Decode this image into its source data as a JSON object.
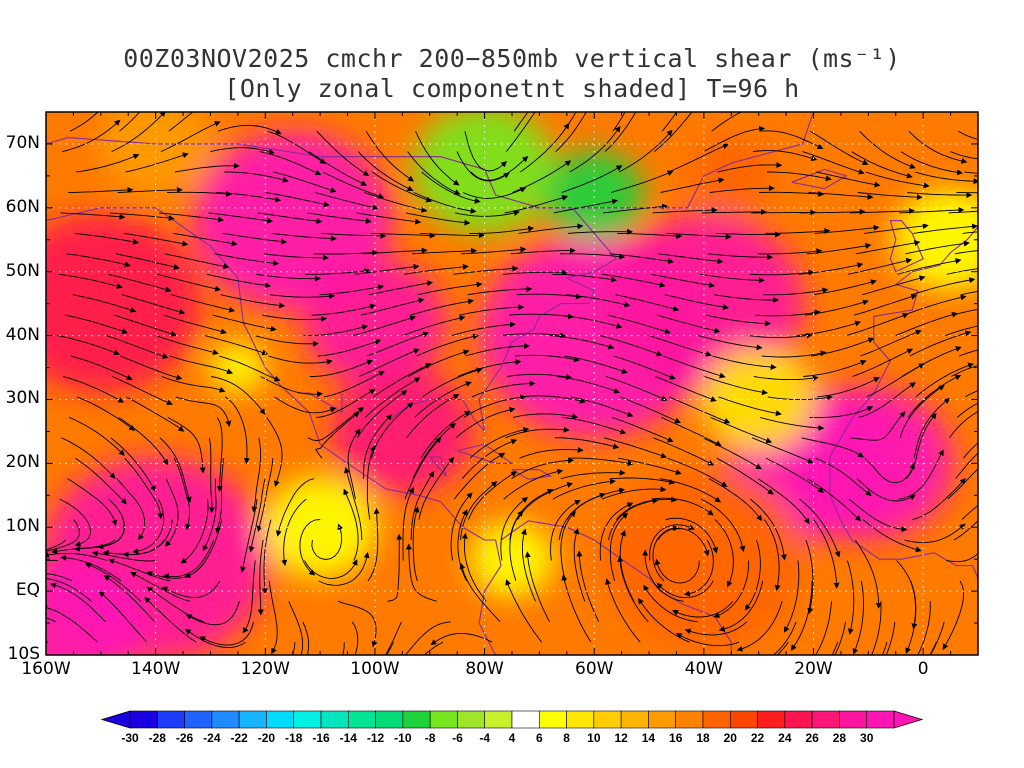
{
  "title_line1": "00Z03NOV2025 cmchr 200−850mb vertical shear (ms⁻¹)",
  "title_line2": "[Only zonal componetnt shaded] T=96 h",
  "map": {
    "lon_range": [
      -160,
      10
    ],
    "lat_range": [
      -10,
      75
    ],
    "lat_labels": [
      "70N",
      "60N",
      "50N",
      "40N",
      "30N",
      "20N",
      "10N",
      "EQ",
      "10S"
    ],
    "lat_values": [
      70,
      60,
      50,
      40,
      30,
      20,
      10,
      0,
      -10
    ],
    "lon_labels": [
      "160W",
      "140W",
      "120W",
      "100W",
      "80W",
      "60W",
      "40W",
      "20W",
      "0"
    ],
    "lon_values": [
      -160,
      -140,
      -120,
      -100,
      -80,
      -60,
      -40,
      -20,
      0
    ],
    "streamline_color": "#000000",
    "coastline_color": "#8a2a9a",
    "grid": "dotted"
  },
  "colorbar": {
    "labels": [
      "-30",
      "-28",
      "-26",
      "-24",
      "-22",
      "-20",
      "-18",
      "-16",
      "-14",
      "-12",
      "-10",
      "-8",
      "-6",
      "-4",
      "4",
      "6",
      "8",
      "10",
      "12",
      "14",
      "16",
      "18",
      "20",
      "22",
      "24",
      "26",
      "28",
      "30"
    ],
    "colors": [
      "#1a00e0",
      "#1e3cff",
      "#1e64ff",
      "#1e8cff",
      "#19b4ff",
      "#00dcff",
      "#00f0e6",
      "#00e6be",
      "#00e696",
      "#00dc78",
      "#1ed23c",
      "#78e61e",
      "#a0e628",
      "#c8f02d",
      "#ffffff",
      "#ffff00",
      "#ffe600",
      "#ffcd00",
      "#ffb400",
      "#ff9b00",
      "#ff8200",
      "#ff6400",
      "#ff4600",
      "#ff1e1e",
      "#ff1450",
      "#ff1478",
      "#ff14a0",
      "#ff14b4"
    ]
  },
  "shading_blobs": [
    {
      "lon": -150,
      "lat": 45,
      "r": 14,
      "v": 24
    },
    {
      "lon": -115,
      "lat": 58,
      "r": 14,
      "v": 30
    },
    {
      "lon": -100,
      "lat": 42,
      "r": 10,
      "v": 28
    },
    {
      "lon": -95,
      "lat": 25,
      "r": 10,
      "v": 26
    },
    {
      "lon": -60,
      "lat": 40,
      "r": 16,
      "v": 30
    },
    {
      "lon": -40,
      "lat": 45,
      "r": 14,
      "v": 28
    },
    {
      "lon": -20,
      "lat": 20,
      "r": 12,
      "v": 30
    },
    {
      "lon": -10,
      "lat": 20,
      "r": 12,
      "v": 30
    },
    {
      "lon": -140,
      "lat": 5,
      "r": 16,
      "v": 28
    },
    {
      "lon": -155,
      "lat": -5,
      "r": 10,
      "v": 30
    },
    {
      "lon": -110,
      "lat": 10,
      "r": 8,
      "v": 6
    },
    {
      "lon": -40,
      "lat": 5,
      "r": 14,
      "v": 18
    },
    {
      "lon": -80,
      "lat": 66,
      "r": 10,
      "v": -8
    },
    {
      "lon": -60,
      "lat": 62,
      "r": 7,
      "v": -10
    },
    {
      "lon": -75,
      "lat": 5,
      "r": 6,
      "v": 5
    },
    {
      "lon": -30,
      "lat": 30,
      "r": 8,
      "v": 8
    },
    {
      "lon": -125,
      "lat": 35,
      "r": 4,
      "v": 6
    },
    {
      "lon": -35,
      "lat": 65,
      "r": 6,
      "v": 18
    },
    {
      "lon": -140,
      "lat": 70,
      "r": 8,
      "v": 14
    },
    {
      "lon": 5,
      "lat": 55,
      "r": 8,
      "v": 6
    }
  ]
}
